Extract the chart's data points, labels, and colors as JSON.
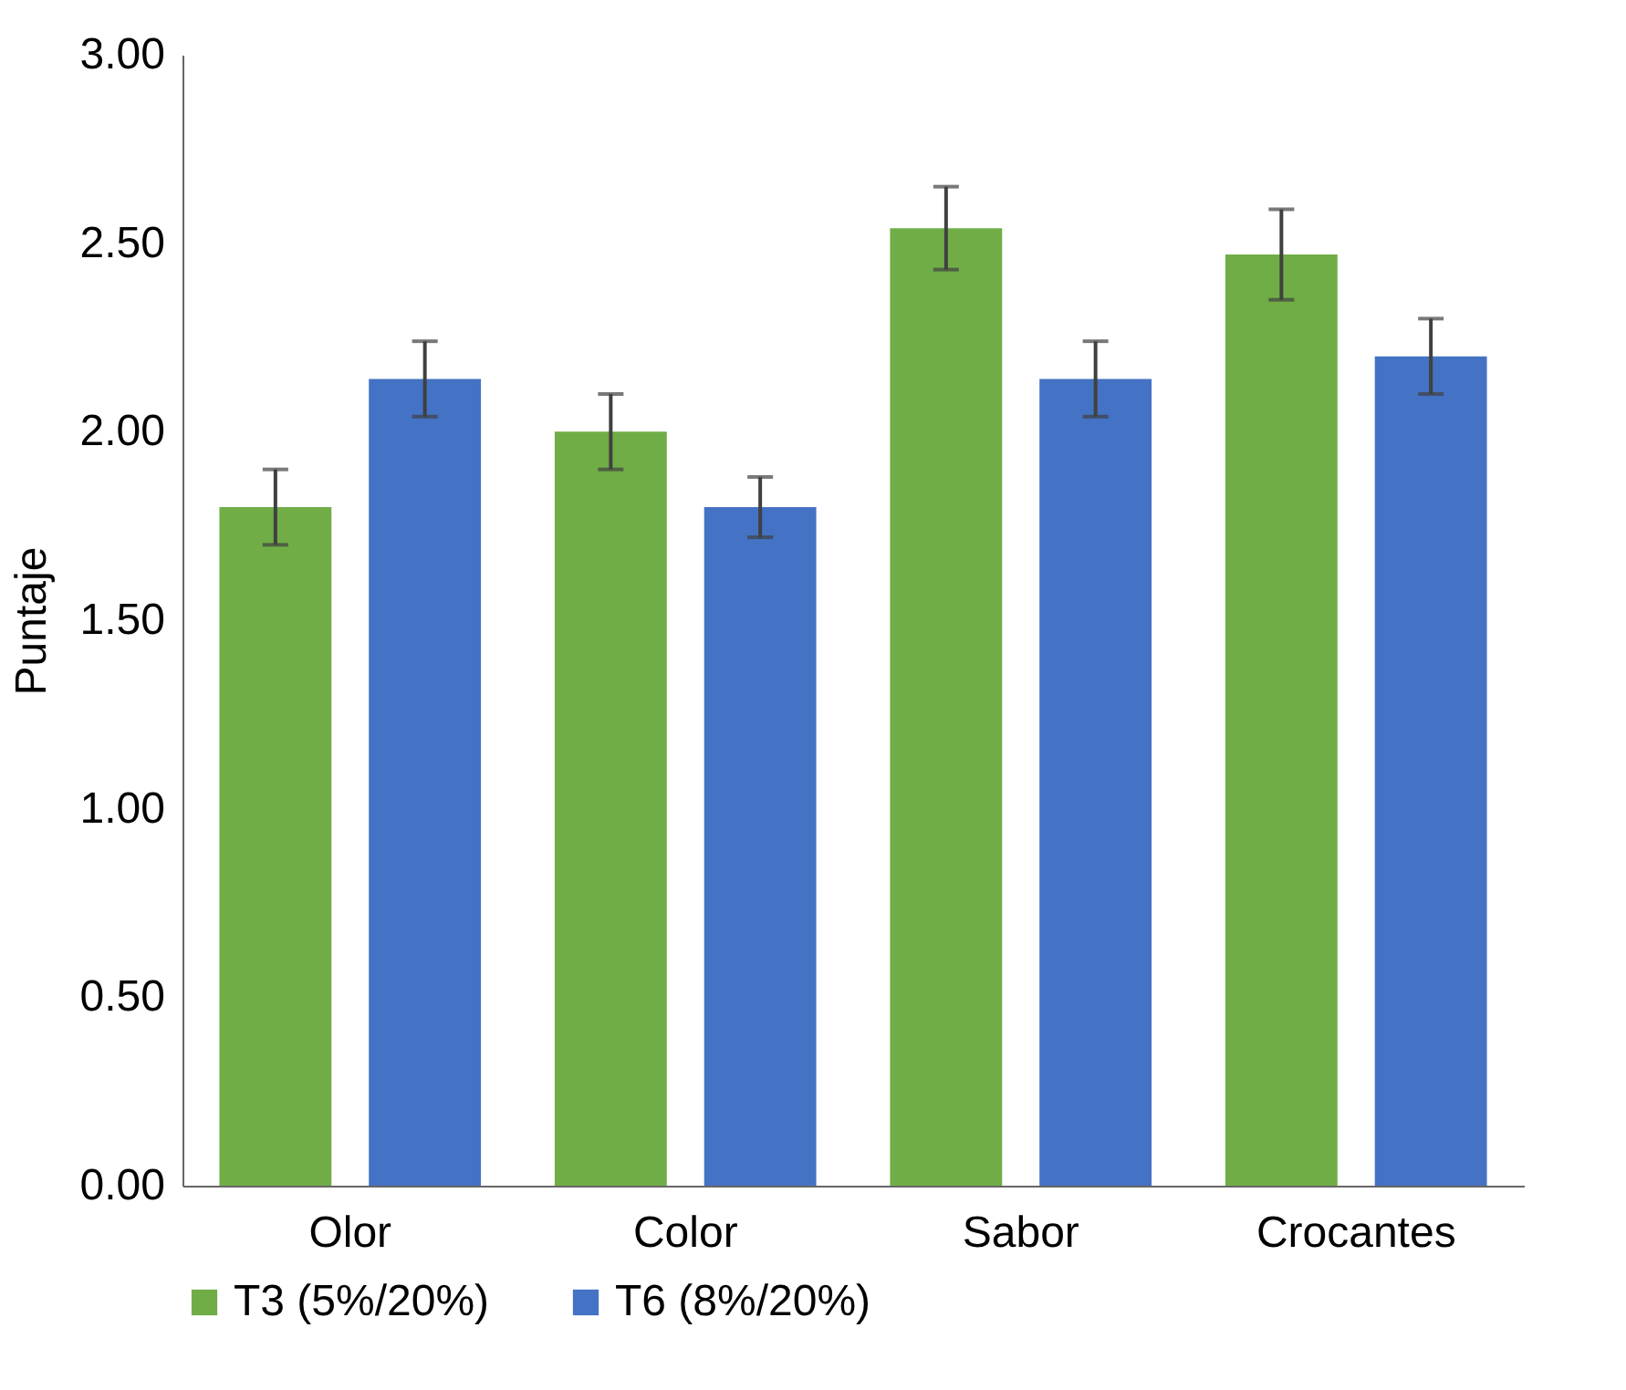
{
  "chart_data": {
    "type": "bar",
    "ylabel": "Puntaje",
    "categories": [
      "Olor",
      "Color",
      "Sabor",
      "Crocantes"
    ],
    "series": [
      {
        "name": "T3 (5%/20%)",
        "color": "#70ad47",
        "values": [
          1.8,
          2.0,
          2.54,
          2.47
        ],
        "errors": [
          0.1,
          0.1,
          0.11,
          0.12
        ]
      },
      {
        "name": "T6 (8%/20%)",
        "color": "#4472c4",
        "values": [
          2.14,
          1.8,
          2.14,
          2.2
        ],
        "errors": [
          0.1,
          0.08,
          0.1,
          0.1
        ]
      }
    ],
    "ylim": [
      0,
      3
    ],
    "yticks": [
      {
        "value": 0,
        "label": "0.00"
      },
      {
        "value": 0.5,
        "label": "0.50"
      },
      {
        "value": 1,
        "label": "1.00"
      },
      {
        "value": 1.5,
        "label": "1.50"
      },
      {
        "value": 2,
        "label": "2.00"
      },
      {
        "value": 2.5,
        "label": "2.50"
      },
      {
        "value": 3,
        "label": "3.00"
      }
    ],
    "grid": false,
    "legend": "bottom"
  }
}
